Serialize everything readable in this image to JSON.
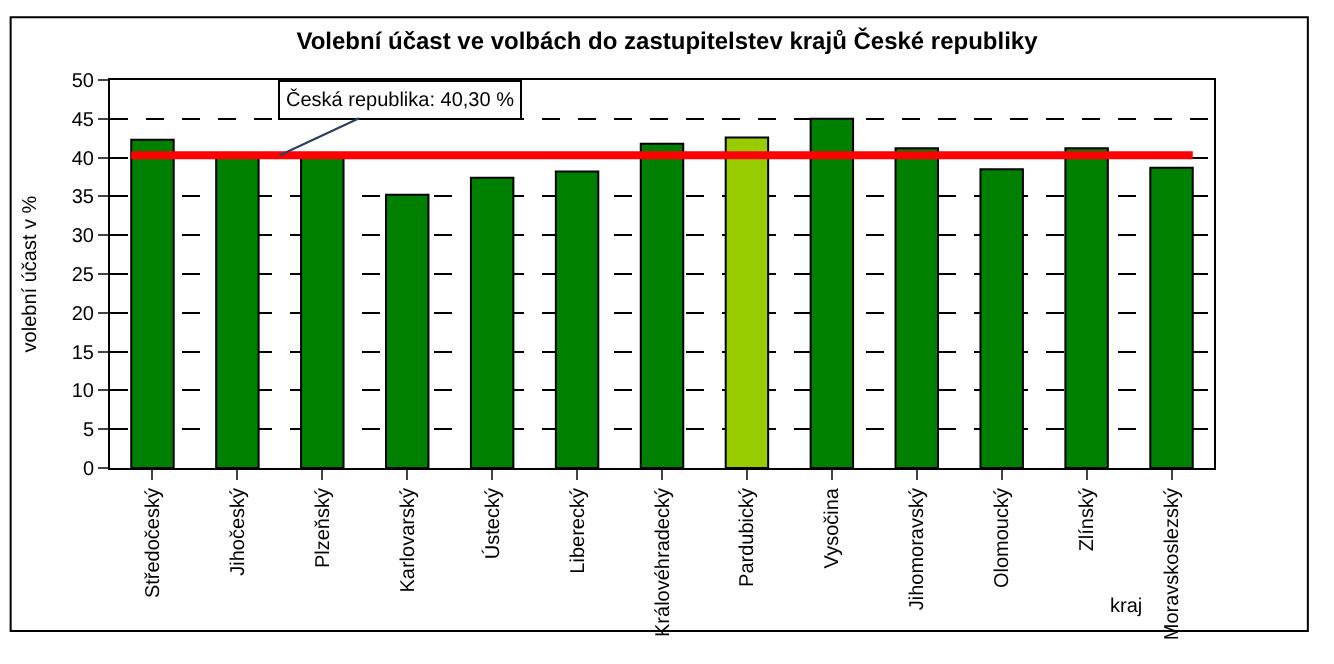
{
  "chart_data": {
    "type": "bar",
    "title": "Volební účast ve volbách do zastupitelstev krajů České republiky",
    "categories": [
      "Středočeský",
      "Jihočeský",
      "Plzeňský",
      "Karlovarský",
      "Ústecký",
      "Liberecký",
      "Královéhradecký",
      "Pardubický",
      "Vysočina",
      "Jihomoravský",
      "Olomoucký",
      "Zlínský",
      "Moravskoslezský"
    ],
    "values": [
      42.3,
      40.5,
      40.2,
      35.2,
      37.4,
      38.2,
      41.8,
      42.6,
      45.0,
      41.2,
      38.5,
      41.2,
      38.7
    ],
    "colors": [
      "#008000",
      "#008000",
      "#008000",
      "#008000",
      "#008000",
      "#008000",
      "#008000",
      "#99cc00",
      "#008000",
      "#008000",
      "#008000",
      "#008000",
      "#008000"
    ],
    "xlabel": "kraj",
    "ylabel": "volební účast v %",
    "ylim": [
      0,
      50
    ],
    "yticks": [
      0,
      5,
      10,
      15,
      20,
      25,
      30,
      35,
      40,
      45,
      50
    ],
    "grid": "y",
    "ref_lines": [
      {
        "axis": "y",
        "value": 40.3,
        "label": "Česká republika: 40,30 %",
        "color": "#ff0000"
      }
    ]
  }
}
